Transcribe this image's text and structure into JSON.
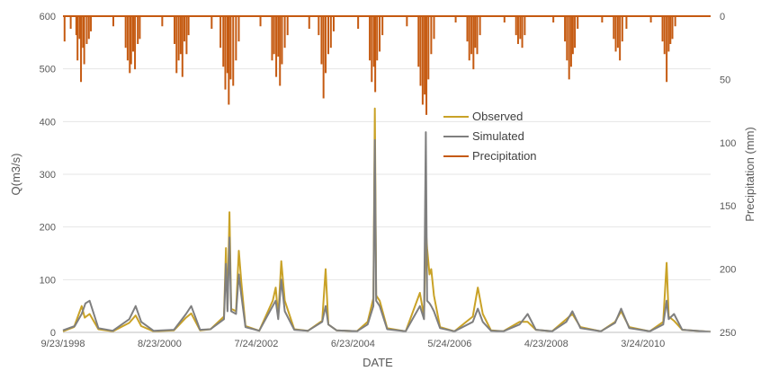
{
  "chart_data": {
    "type": "line",
    "xlabel": "DATE",
    "ylabel_left": "Q(m3/s)",
    "ylabel_right": "Precipitation (mm)",
    "x_tick_labels": [
      "9/23/1998",
      "8/23/2000",
      "7/24/2002",
      "6/23/2004",
      "5/24/2006",
      "4/23/2008",
      "3/24/2010"
    ],
    "y_left_ticks": [
      "0",
      "100",
      "200",
      "300",
      "400",
      "500",
      "600"
    ],
    "y_right_ticks": [
      "0",
      "50",
      "100",
      "150",
      "200",
      "250"
    ],
    "ylim_left": [
      0,
      600
    ],
    "ylim_right_inverted": [
      0,
      250
    ],
    "xlim": [
      "1998-09-23",
      "2011-12-31"
    ],
    "legend_placement": "center",
    "series": [
      {
        "name": "Observed",
        "color": "#C9A227",
        "points": [
          [
            "1998-09-23",
            2
          ],
          [
            "1998-12-15",
            10
          ],
          [
            "1999-02-10",
            50
          ],
          [
            "1999-03-05",
            28
          ],
          [
            "1999-04-10",
            35
          ],
          [
            "1999-06-15",
            6
          ],
          [
            "1999-10-01",
            2
          ],
          [
            "2000-02-01",
            18
          ],
          [
            "2000-03-20",
            32
          ],
          [
            "2000-05-01",
            12
          ],
          [
            "2000-08-01",
            2
          ],
          [
            "2001-01-01",
            4
          ],
          [
            "2001-04-01",
            28
          ],
          [
            "2001-05-10",
            36
          ],
          [
            "2001-07-15",
            4
          ],
          [
            "2001-10-01",
            6
          ],
          [
            "2002-01-10",
            30
          ],
          [
            "2002-01-25",
            160
          ],
          [
            "2002-02-05",
            45
          ],
          [
            "2002-02-20",
            228
          ],
          [
            "2002-03-05",
            45
          ],
          [
            "2002-04-10",
            40
          ],
          [
            "2002-05-01",
            155
          ],
          [
            "2002-05-20",
            95
          ],
          [
            "2002-06-20",
            12
          ],
          [
            "2002-10-01",
            3
          ],
          [
            "2003-01-10",
            60
          ],
          [
            "2003-02-01",
            85
          ],
          [
            "2003-02-20",
            30
          ],
          [
            "2003-03-15",
            135
          ],
          [
            "2003-04-10",
            60
          ],
          [
            "2003-06-20",
            6
          ],
          [
            "2003-10-01",
            3
          ],
          [
            "2004-01-15",
            22
          ],
          [
            "2004-02-10",
            120
          ],
          [
            "2004-03-01",
            15
          ],
          [
            "2004-05-01",
            4
          ],
          [
            "2004-10-01",
            2
          ],
          [
            "2004-12-20",
            20
          ],
          [
            "2005-02-01",
            65
          ],
          [
            "2005-02-12",
            425
          ],
          [
            "2005-02-22",
            70
          ],
          [
            "2005-03-20",
            60
          ],
          [
            "2005-05-15",
            8
          ],
          [
            "2005-10-01",
            2
          ],
          [
            "2006-01-15",
            75
          ],
          [
            "2006-02-15",
            30
          ],
          [
            "2006-03-01",
            197
          ],
          [
            "2006-03-10",
            160
          ],
          [
            "2006-03-28",
            110
          ],
          [
            "2006-04-10",
            120
          ],
          [
            "2006-04-30",
            70
          ],
          [
            "2006-06-15",
            10
          ],
          [
            "2006-10-01",
            2
          ],
          [
            "2007-02-15",
            30
          ],
          [
            "2007-03-25",
            85
          ],
          [
            "2007-05-01",
            35
          ],
          [
            "2007-07-01",
            4
          ],
          [
            "2007-10-01",
            2
          ],
          [
            "2008-02-01",
            20
          ],
          [
            "2008-04-01",
            20
          ],
          [
            "2008-06-01",
            5
          ],
          [
            "2008-10-01",
            2
          ],
          [
            "2009-01-15",
            25
          ],
          [
            "2009-03-01",
            35
          ],
          [
            "2009-05-01",
            10
          ],
          [
            "2009-10-01",
            2
          ],
          [
            "2010-01-15",
            20
          ],
          [
            "2010-03-01",
            40
          ],
          [
            "2010-05-01",
            10
          ],
          [
            "2010-10-01",
            2
          ],
          [
            "2011-01-10",
            20
          ],
          [
            "2011-02-05",
            132
          ],
          [
            "2011-02-20",
            30
          ],
          [
            "2011-04-01",
            22
          ],
          [
            "2011-06-01",
            5
          ],
          [
            "2011-12-31",
            1
          ]
        ]
      },
      {
        "name": "Simulated",
        "color": "#7F7F7F",
        "points": [
          [
            "1998-09-23",
            4
          ],
          [
            "1998-12-20",
            12
          ],
          [
            "1999-02-10",
            35
          ],
          [
            "1999-03-10",
            55
          ],
          [
            "1999-04-10",
            60
          ],
          [
            "1999-06-15",
            8
          ],
          [
            "1999-10-01",
            3
          ],
          [
            "2000-02-01",
            25
          ],
          [
            "2000-03-20",
            50
          ],
          [
            "2000-05-01",
            20
          ],
          [
            "2000-08-01",
            3
          ],
          [
            "2001-01-01",
            5
          ],
          [
            "2001-04-01",
            35
          ],
          [
            "2001-05-10",
            50
          ],
          [
            "2001-07-15",
            5
          ],
          [
            "2001-10-01",
            6
          ],
          [
            "2002-01-10",
            25
          ],
          [
            "2002-01-25",
            130
          ],
          [
            "2002-02-05",
            40
          ],
          [
            "2002-02-20",
            180
          ],
          [
            "2002-03-05",
            40
          ],
          [
            "2002-04-10",
            35
          ],
          [
            "2002-05-01",
            110
          ],
          [
            "2002-05-20",
            70
          ],
          [
            "2002-06-20",
            10
          ],
          [
            "2002-10-01",
            3
          ],
          [
            "2003-01-10",
            50
          ],
          [
            "2003-02-01",
            60
          ],
          [
            "2003-02-20",
            25
          ],
          [
            "2003-03-15",
            100
          ],
          [
            "2003-04-10",
            40
          ],
          [
            "2003-06-20",
            5
          ],
          [
            "2003-10-01",
            3
          ],
          [
            "2004-01-15",
            20
          ],
          [
            "2004-02-10",
            50
          ],
          [
            "2004-03-01",
            15
          ],
          [
            "2004-05-01",
            4
          ],
          [
            "2004-10-01",
            2
          ],
          [
            "2004-12-20",
            15
          ],
          [
            "2005-02-01",
            50
          ],
          [
            "2005-02-12",
            365
          ],
          [
            "2005-02-22",
            60
          ],
          [
            "2005-03-20",
            50
          ],
          [
            "2005-05-15",
            6
          ],
          [
            "2005-10-01",
            2
          ],
          [
            "2006-01-15",
            50
          ],
          [
            "2006-02-15",
            25
          ],
          [
            "2006-03-01",
            380
          ],
          [
            "2006-03-10",
            60
          ],
          [
            "2006-03-28",
            55
          ],
          [
            "2006-04-10",
            50
          ],
          [
            "2006-04-30",
            40
          ],
          [
            "2006-06-15",
            8
          ],
          [
            "2006-10-01",
            2
          ],
          [
            "2007-02-15",
            20
          ],
          [
            "2007-03-25",
            45
          ],
          [
            "2007-05-01",
            20
          ],
          [
            "2007-07-01",
            3
          ],
          [
            "2007-10-01",
            2
          ],
          [
            "2008-02-01",
            15
          ],
          [
            "2008-04-01",
            35
          ],
          [
            "2008-06-01",
            5
          ],
          [
            "2008-10-01",
            2
          ],
          [
            "2009-01-15",
            20
          ],
          [
            "2009-03-01",
            40
          ],
          [
            "2009-05-01",
            8
          ],
          [
            "2009-10-01",
            2
          ],
          [
            "2010-01-15",
            18
          ],
          [
            "2010-03-01",
            45
          ],
          [
            "2010-05-01",
            8
          ],
          [
            "2010-10-01",
            2
          ],
          [
            "2011-01-10",
            15
          ],
          [
            "2011-02-05",
            60
          ],
          [
            "2011-02-20",
            25
          ],
          [
            "2011-04-01",
            35
          ],
          [
            "2011-06-01",
            5
          ],
          [
            "2011-12-31",
            1
          ]
        ]
      },
      {
        "name": "Precipitation",
        "color": "#C55A11",
        "axis": "right",
        "style": "bars-from-top",
        "points": [
          [
            "1998-10-05",
            20
          ],
          [
            "1998-11-20",
            10
          ],
          [
            "1999-01-01",
            15
          ],
          [
            "1999-01-10",
            35
          ],
          [
            "1999-01-25",
            18
          ],
          [
            "1999-02-05",
            52
          ],
          [
            "1999-02-20",
            25
          ],
          [
            "1999-03-01",
            38
          ],
          [
            "1999-03-20",
            22
          ],
          [
            "1999-04-05",
            18
          ],
          [
            "1999-04-20",
            12
          ],
          [
            "1999-10-05",
            8
          ],
          [
            "2000-01-05",
            25
          ],
          [
            "2000-01-20",
            35
          ],
          [
            "2000-02-05",
            45
          ],
          [
            "2000-02-15",
            38
          ],
          [
            "2000-03-01",
            28
          ],
          [
            "2000-03-15",
            42
          ],
          [
            "2000-04-05",
            22
          ],
          [
            "2000-04-20",
            18
          ],
          [
            "2000-10-05",
            8
          ],
          [
            "2001-01-05",
            22
          ],
          [
            "2001-01-20",
            45
          ],
          [
            "2001-02-05",
            35
          ],
          [
            "2001-02-20",
            30
          ],
          [
            "2001-03-05",
            48
          ],
          [
            "2001-03-20",
            20
          ],
          [
            "2001-04-05",
            30
          ],
          [
            "2001-04-20",
            15
          ],
          [
            "2001-10-10",
            10
          ],
          [
            "2001-12-15",
            25
          ],
          [
            "2002-01-05",
            40
          ],
          [
            "2002-01-20",
            58
          ],
          [
            "2002-02-05",
            45
          ],
          [
            "2002-02-15",
            70
          ],
          [
            "2002-03-01",
            50
          ],
          [
            "2002-03-20",
            55
          ],
          [
            "2002-04-10",
            35
          ],
          [
            "2002-05-01",
            20
          ],
          [
            "2002-10-10",
            8
          ],
          [
            "2003-01-05",
            35
          ],
          [
            "2003-01-20",
            30
          ],
          [
            "2003-02-05",
            48
          ],
          [
            "2003-02-20",
            32
          ],
          [
            "2003-03-05",
            55
          ],
          [
            "2003-03-20",
            38
          ],
          [
            "2003-04-10",
            25
          ],
          [
            "2003-05-01",
            15
          ],
          [
            "2003-10-10",
            10
          ],
          [
            "2003-12-20",
            15
          ],
          [
            "2004-01-10",
            38
          ],
          [
            "2004-01-25",
            65
          ],
          [
            "2004-02-10",
            45
          ],
          [
            "2004-03-01",
            30
          ],
          [
            "2004-03-20",
            25
          ],
          [
            "2004-04-10",
            12
          ],
          [
            "2004-10-10",
            10
          ],
          [
            "2005-01-05",
            35
          ],
          [
            "2005-01-20",
            52
          ],
          [
            "2005-02-05",
            40
          ],
          [
            "2005-02-15",
            60
          ],
          [
            "2005-03-01",
            35
          ],
          [
            "2005-03-20",
            28
          ],
          [
            "2005-04-10",
            15
          ],
          [
            "2005-10-10",
            8
          ],
          [
            "2006-01-05",
            40
          ],
          [
            "2006-01-20",
            55
          ],
          [
            "2006-02-05",
            70
          ],
          [
            "2006-02-20",
            62
          ],
          [
            "2006-03-05",
            78
          ],
          [
            "2006-03-20",
            50
          ],
          [
            "2006-04-10",
            30
          ],
          [
            "2006-05-01",
            18
          ],
          [
            "2006-10-10",
            5
          ],
          [
            "2007-01-05",
            20
          ],
          [
            "2007-01-20",
            35
          ],
          [
            "2007-02-05",
            30
          ],
          [
            "2007-02-20",
            42
          ],
          [
            "2007-03-05",
            25
          ],
          [
            "2007-03-20",
            30
          ],
          [
            "2007-04-10",
            15
          ],
          [
            "2007-10-10",
            5
          ],
          [
            "2008-01-05",
            15
          ],
          [
            "2008-01-20",
            22
          ],
          [
            "2008-02-05",
            18
          ],
          [
            "2008-02-20",
            25
          ],
          [
            "2008-03-10",
            15
          ],
          [
            "2008-10-10",
            5
          ],
          [
            "2009-01-05",
            20
          ],
          [
            "2009-01-20",
            35
          ],
          [
            "2009-02-05",
            50
          ],
          [
            "2009-02-20",
            40
          ],
          [
            "2009-03-05",
            30
          ],
          [
            "2009-03-20",
            25
          ],
          [
            "2009-04-10",
            10
          ],
          [
            "2009-10-10",
            5
          ],
          [
            "2010-01-05",
            18
          ],
          [
            "2010-01-20",
            28
          ],
          [
            "2010-02-05",
            25
          ],
          [
            "2010-02-20",
            35
          ],
          [
            "2010-03-10",
            20
          ],
          [
            "2010-04-10",
            10
          ],
          [
            "2010-10-10",
            5
          ],
          [
            "2011-01-05",
            20
          ],
          [
            "2011-01-20",
            30
          ],
          [
            "2011-02-05",
            52
          ],
          [
            "2011-02-20",
            28
          ],
          [
            "2011-03-05",
            22
          ],
          [
            "2011-03-20",
            18
          ],
          [
            "2011-04-10",
            8
          ]
        ]
      }
    ]
  }
}
